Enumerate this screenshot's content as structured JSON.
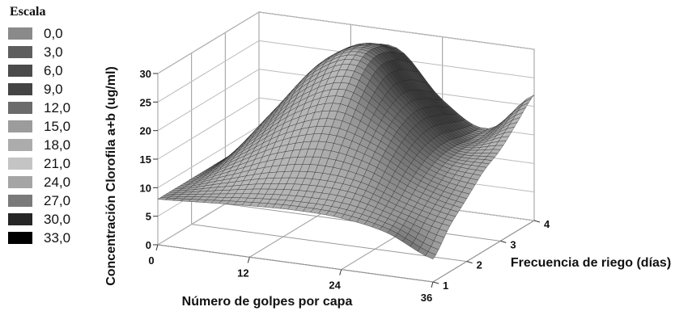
{
  "legend": {
    "title": "Escala",
    "items": [
      {
        "label": "0,0",
        "color": "#8a8a8a"
      },
      {
        "label": "3,0",
        "color": "#5e5e5e"
      },
      {
        "label": "6,0",
        "color": "#4b4b4b"
      },
      {
        "label": "9,0",
        "color": "#444444"
      },
      {
        "label": "12,0",
        "color": "#6b6b6b"
      },
      {
        "label": "15,0",
        "color": "#9c9c9c"
      },
      {
        "label": "18,0",
        "color": "#acacac"
      },
      {
        "label": "21,0",
        "color": "#c4c4c4"
      },
      {
        "label": "24,0",
        "color": "#a5a5a5"
      },
      {
        "label": "27,0",
        "color": "#7a7a7a"
      },
      {
        "label": "30,0",
        "color": "#262626"
      },
      {
        "label": "33,0",
        "color": "#000000"
      }
    ]
  },
  "chart_data": {
    "type": "surface",
    "title": "",
    "xlabel": "Número de golpes por capa",
    "ylabel": "Concentración Clorofila a+b (ug/ml)",
    "zlabel": "Frecuencia de riego (días)",
    "xlim": [
      0,
      36
    ],
    "zlim": [
      1,
      4
    ],
    "ylim": [
      0,
      30
    ],
    "x_ticks": [
      "0",
      "12",
      "24",
      "36"
    ],
    "z_ticks": [
      "1",
      "2",
      "3",
      "4"
    ],
    "y_ticks": [
      "0",
      "5",
      "10",
      "15",
      "20",
      "25",
      "30"
    ],
    "x_tick_values": [
      0,
      12,
      24,
      36
    ],
    "z_tick_values": [
      1,
      2,
      3,
      4
    ],
    "y_tick_values": [
      0,
      5,
      10,
      15,
      20,
      25,
      30
    ],
    "grid": true,
    "surface_x": [
      0,
      6,
      12,
      18,
      24,
      30,
      36
    ],
    "surface_z": [
      1,
      1.5,
      2,
      2.5,
      3,
      3.5,
      4
    ],
    "surface_y": [
      [
        8,
        8.5,
        9,
        9.3,
        9,
        7.5,
        4
      ],
      [
        8,
        10,
        12,
        13,
        12.5,
        10,
        8
      ],
      [
        8,
        12.5,
        17,
        19,
        17,
        13,
        11
      ],
      [
        8,
        15,
        22,
        25,
        20.5,
        15,
        14
      ],
      [
        8,
        17,
        26,
        29,
        22,
        15.5,
        16
      ],
      [
        8,
        17.5,
        26.5,
        29,
        21,
        15,
        19
      ],
      [
        8,
        16.5,
        25,
        27,
        19,
        15,
        22
      ]
    ]
  }
}
